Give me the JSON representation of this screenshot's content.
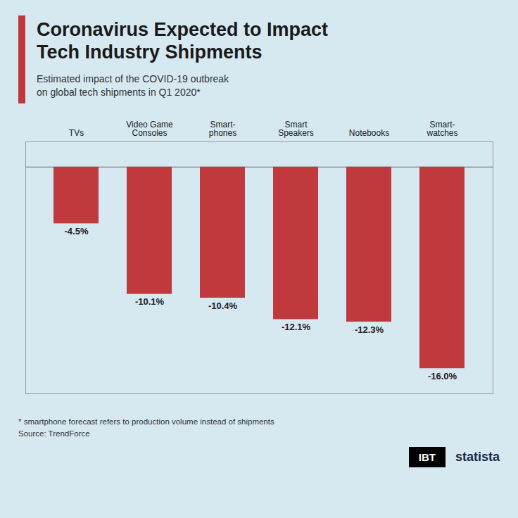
{
  "chart_data": {
    "type": "bar",
    "title": "Coronavirus Expected to Impact\nTech Industry Shipments",
    "subtitle": "Estimated impact of the COVID-19 outbreak\non global tech shipments in Q1 2020*",
    "categories": [
      "TVs",
      "Video Game\nConsoles",
      "Smart-\nphones",
      "Smart\nSpeakers",
      "Notebooks",
      "Smart-\nwatches"
    ],
    "values": [
      -4.5,
      -10.1,
      -10.4,
      -12.1,
      -12.3,
      -16.0
    ],
    "value_labels": [
      "-4.5%",
      "-10.1%",
      "-10.4%",
      "-12.1%",
      "-12.3%",
      "-16.0%"
    ],
    "data_labels": true,
    "color": "#c0393d",
    "ylim": [
      -18,
      2
    ],
    "tick_labels": "x",
    "grid": false,
    "notes": [
      "* smartphone forecast refers to production volume instead of shipments",
      "Source: TrendForce"
    ],
    "annotations": [
      "IBT",
      "statista"
    ]
  }
}
